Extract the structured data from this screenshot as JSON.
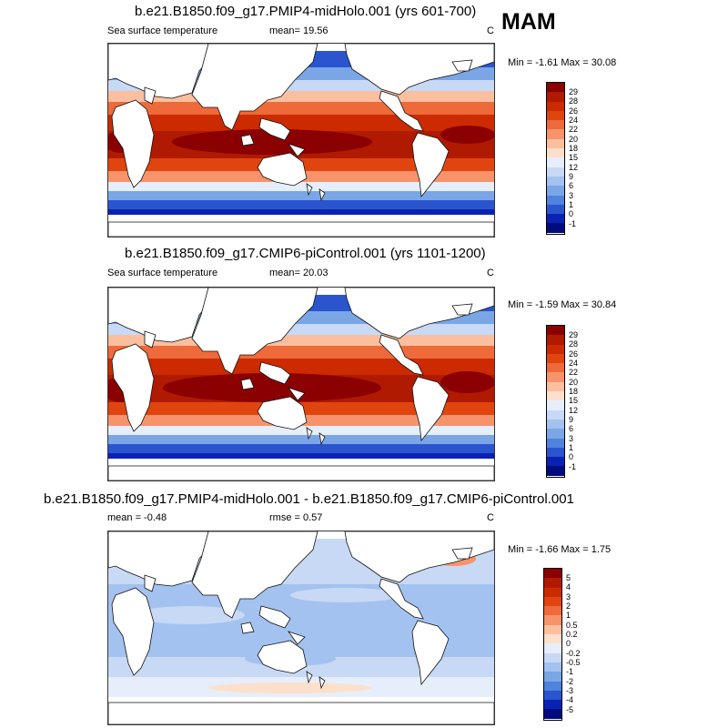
{
  "season": "MAM",
  "panels": [
    {
      "title": "b.e21.B1850.f09_g17.PMIP4-midHolo.001 (yrs 601-700)",
      "left_label": "Sea surface temperature",
      "center_label": "mean=  19.56",
      "units": "C",
      "min_max": "Min =  -1.61 Max =  30.08"
    },
    {
      "title": "b.e21.B1850.f09_g17.CMIP6-piControl.001 (yrs 1101-1200)",
      "left_label": "Sea surface temperature",
      "center_label": "mean=  20.03",
      "units": "C",
      "min_max": "Min =  -1.59 Max =  30.84"
    },
    {
      "title": "b.e21.B1850.f09_g17.PMIP4-midHolo.001 - b.e21.B1850.f09_g17.CMIP6-piControl.001",
      "left_label": "mean =  -0.48",
      "center_label": "rmse =   0.57",
      "units": "C",
      "min_max": "Min =  -1.66 Max =   1.75"
    }
  ],
  "colorbar_abs": {
    "labels": [
      "29",
      "28",
      "26",
      "24",
      "22",
      "20",
      "18",
      "15",
      "12",
      "9",
      "6",
      "3",
      "1",
      "0",
      "-1"
    ],
    "colors": [
      "#8b0000",
      "#b01a00",
      "#cc2a00",
      "#e0450f",
      "#ee6a3a",
      "#f7936a",
      "#fbbf9f",
      "#fde0cc",
      "#e6eefb",
      "#c7d9f5",
      "#a3c2ef",
      "#7aa6e6",
      "#4f83dd",
      "#2a55cf",
      "#0a22b3",
      "#000b7d"
    ]
  },
  "colorbar_diff": {
    "labels": [
      "5",
      "4",
      "3",
      "2",
      "1",
      "0.5",
      "0.2",
      "0",
      "-0.2",
      "-0.5",
      "-1",
      "-2",
      "-3",
      "-4",
      "-5"
    ],
    "colors": [
      "#8b0000",
      "#b01a00",
      "#cc2a00",
      "#e0450f",
      "#ee6a3a",
      "#f7936a",
      "#fbbf9f",
      "#fde0cc",
      "#e6eefb",
      "#c7d9f5",
      "#a3c2ef",
      "#7aa6e6",
      "#4f83dd",
      "#2a55cf",
      "#0a22b3",
      "#000b7d"
    ]
  }
}
